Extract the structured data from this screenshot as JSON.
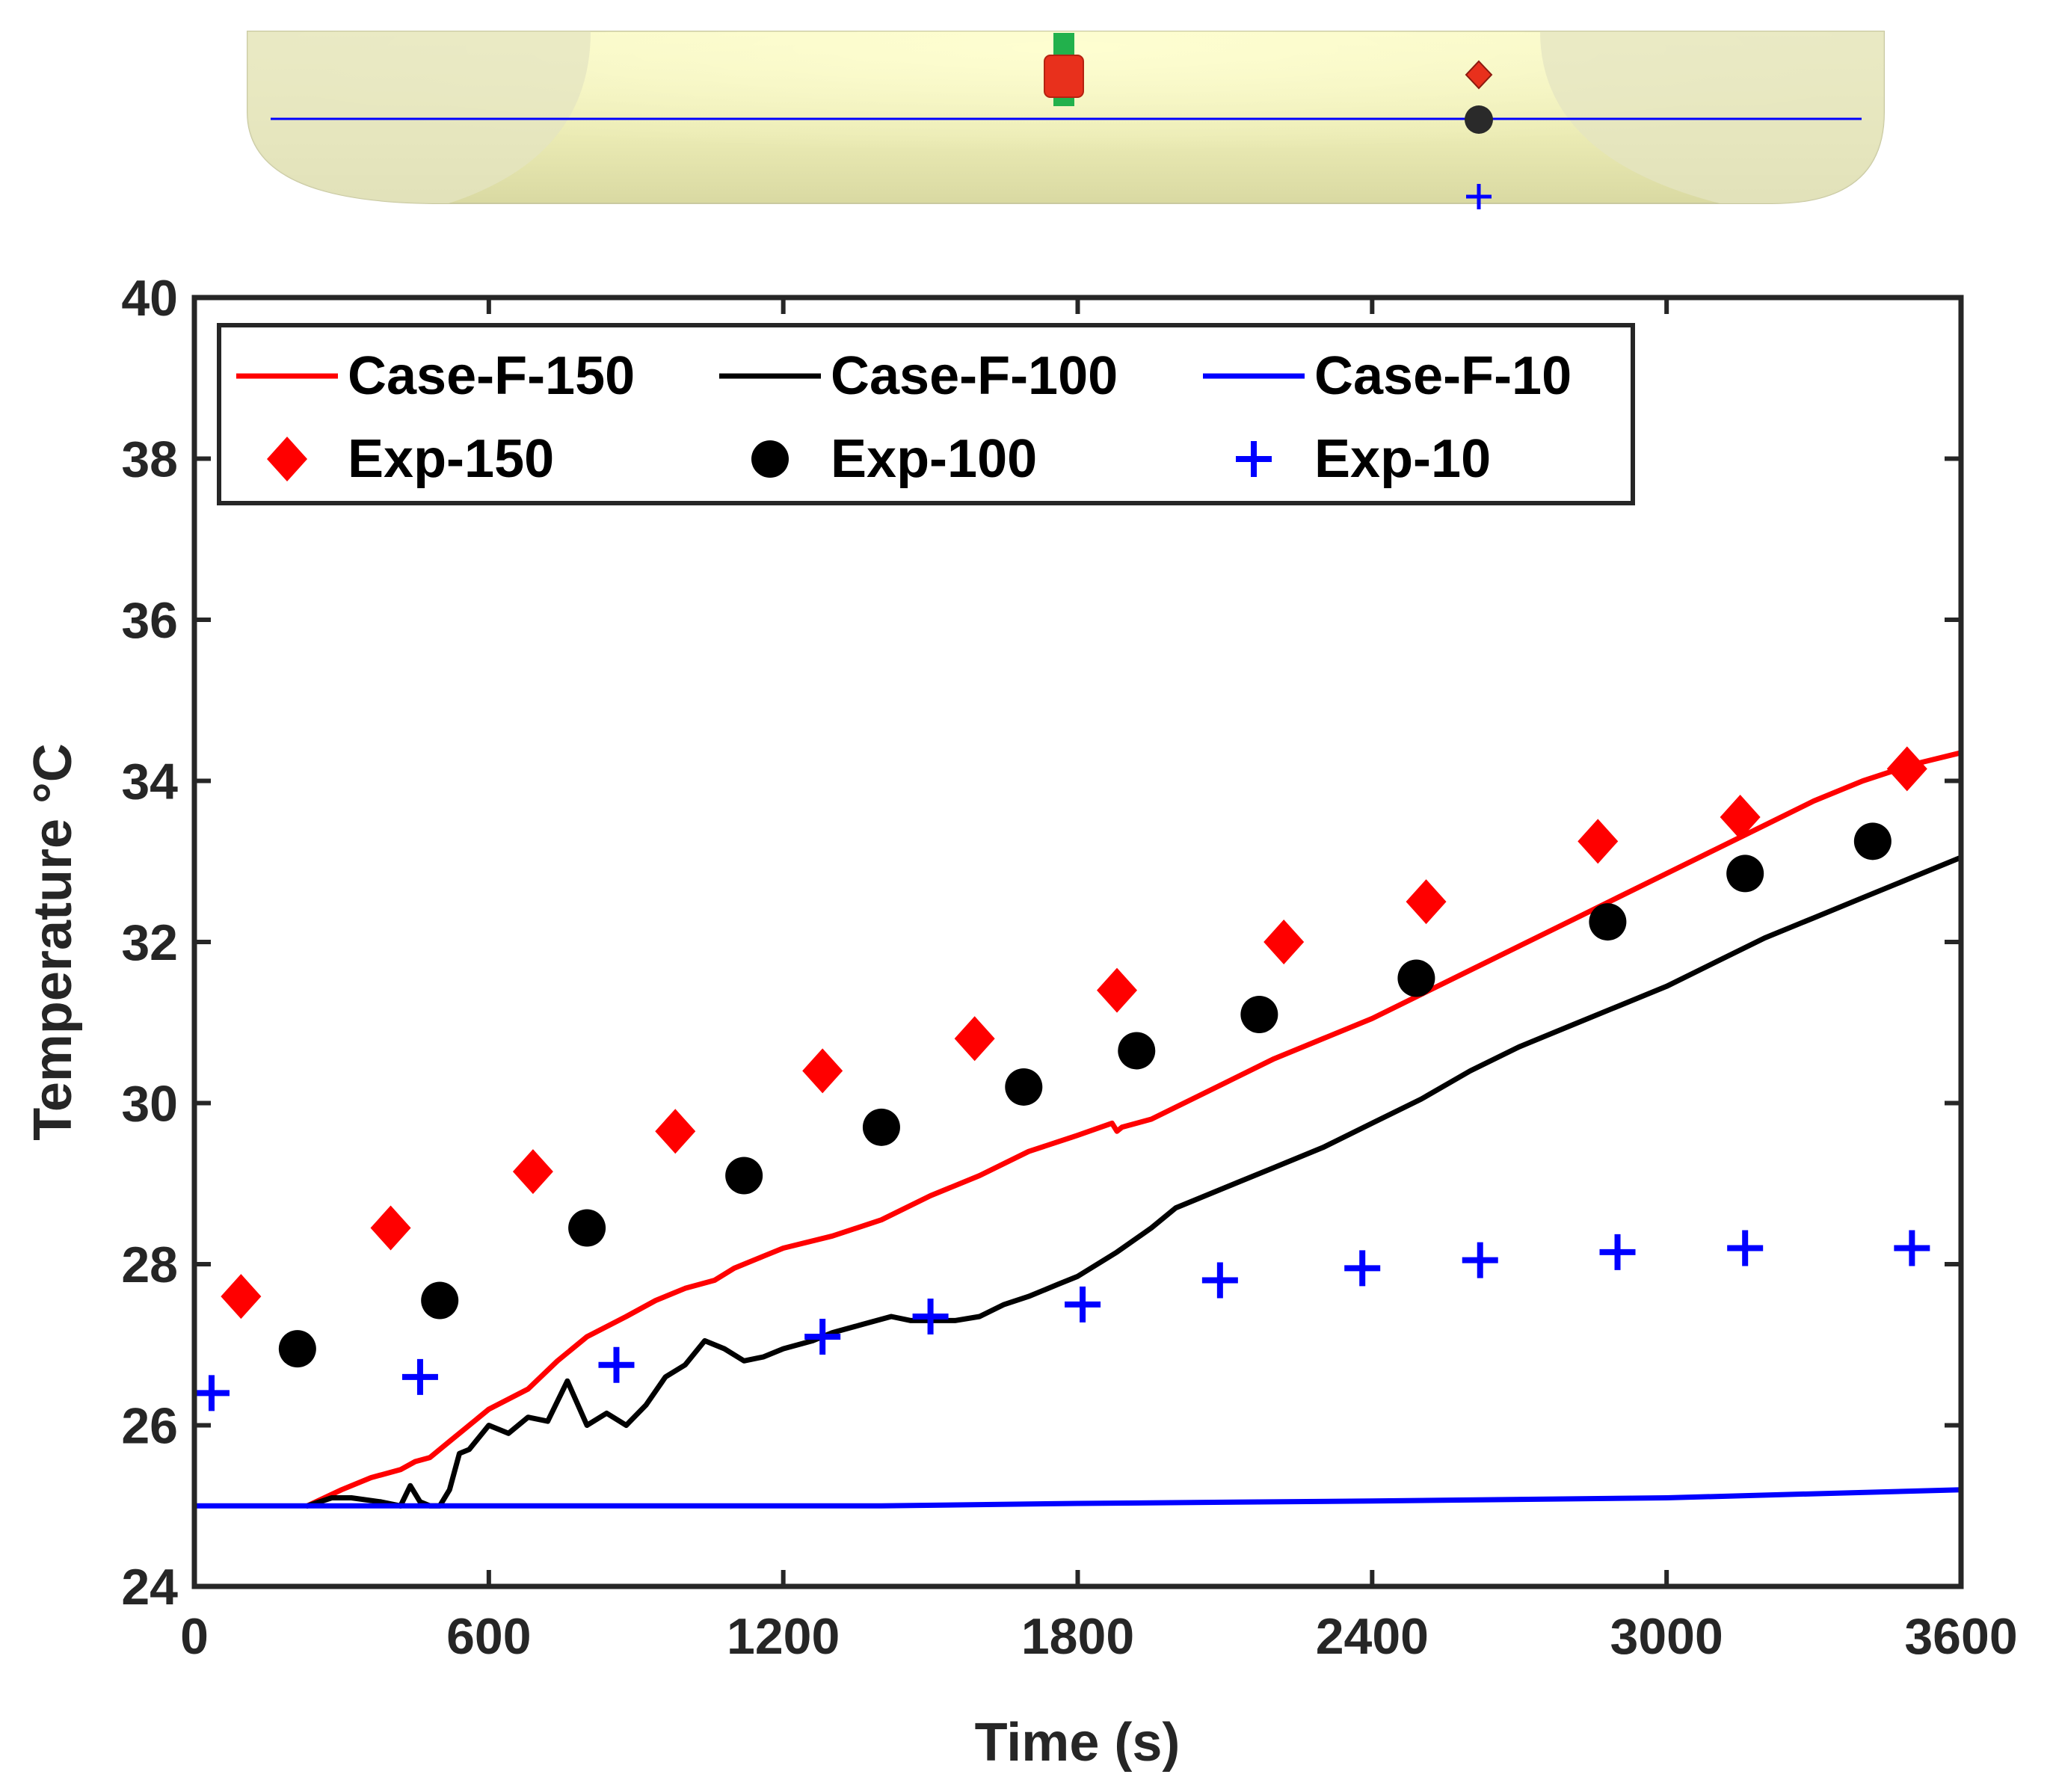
{
  "colors": {
    "case150": "#ff0000",
    "case100": "#000000",
    "case10": "#0000ff",
    "exp150": "#ff0000",
    "exp100": "#000000",
    "exp10": "#0000ff",
    "tank_fill": "#ebebb4",
    "axis": "#262626"
  },
  "chart_data": {
    "type": "line",
    "xlabel": "Time (s)",
    "ylabel": "Temperature °C",
    "xlim": [
      0,
      3600
    ],
    "ylim": [
      24,
      40
    ],
    "xticks": [
      0,
      600,
      1200,
      1800,
      2400,
      3000,
      3600
    ],
    "yticks": [
      24,
      26,
      28,
      30,
      32,
      34,
      36,
      38,
      40
    ],
    "x_tick_labels": [
      "0",
      "600",
      "1200",
      "1800",
      "2400",
      "3000",
      "3600"
    ],
    "y_tick_labels": [
      "24",
      "26",
      "28",
      "30",
      "32",
      "34",
      "36",
      "38",
      "40"
    ],
    "grid": false,
    "legend_position": "top-left",
    "series": [
      {
        "name": "Case-F-150",
        "kind": "line",
        "color": "#ff0000",
        "x": [
          230,
          300,
          360,
          420,
          450,
          480,
          520,
          560,
          600,
          680,
          740,
          800,
          880,
          940,
          1000,
          1060,
          1100,
          1160,
          1200,
          1300,
          1400,
          1500,
          1600,
          1700,
          1800,
          1870,
          1880,
          1890,
          1950,
          2000,
          2100,
          2200,
          2300,
          2400,
          2500,
          2600,
          2700,
          2800,
          2900,
          3000,
          3100,
          3200,
          3300,
          3400,
          3500,
          3600
        ],
        "y": [
          25.0,
          25.2,
          25.35,
          25.45,
          25.55,
          25.6,
          25.8,
          26.0,
          26.2,
          26.45,
          26.8,
          27.1,
          27.35,
          27.55,
          27.7,
          27.8,
          27.95,
          28.1,
          28.2,
          28.35,
          28.55,
          28.85,
          29.1,
          29.4,
          29.6,
          29.75,
          29.65,
          29.7,
          29.8,
          29.95,
          30.25,
          30.55,
          30.8,
          31.05,
          31.35,
          31.65,
          31.95,
          32.25,
          32.55,
          32.85,
          33.15,
          33.45,
          33.75,
          34.0,
          34.2,
          34.35
        ]
      },
      {
        "name": "Case-F-100",
        "kind": "line",
        "color": "#000000",
        "x": [
          230,
          280,
          320,
          380,
          420,
          440,
          460,
          480,
          500,
          520,
          540,
          560,
          600,
          640,
          680,
          720,
          760,
          800,
          840,
          880,
          920,
          960,
          1000,
          1040,
          1080,
          1120,
          1160,
          1200,
          1260,
          1300,
          1360,
          1420,
          1460,
          1500,
          1550,
          1600,
          1650,
          1700,
          1760,
          1800,
          1880,
          1950,
          2000,
          2100,
          2200,
          2300,
          2400,
          2500,
          2600,
          2700,
          2800,
          2900,
          3000,
          3100,
          3200,
          3300,
          3400,
          3500,
          3600
        ],
        "y": [
          25.0,
          25.1,
          25.1,
          25.05,
          25.0,
          25.25,
          25.05,
          25.0,
          25.0,
          25.2,
          25.65,
          25.7,
          26.0,
          25.9,
          26.1,
          26.05,
          26.55,
          26.0,
          26.15,
          26.0,
          26.25,
          26.6,
          26.75,
          27.05,
          26.95,
          26.8,
          26.85,
          26.95,
          27.05,
          27.15,
          27.25,
          27.35,
          27.3,
          27.3,
          27.3,
          27.35,
          27.5,
          27.6,
          27.75,
          27.85,
          28.15,
          28.45,
          28.7,
          28.95,
          29.2,
          29.45,
          29.75,
          30.05,
          30.4,
          30.7,
          30.95,
          31.2,
          31.45,
          31.75,
          32.05,
          32.3,
          32.55,
          32.8,
          33.05
        ]
      },
      {
        "name": "Case-F-10",
        "kind": "line",
        "color": "#0000ff",
        "x": [
          0,
          600,
          1200,
          1400,
          1800,
          2400,
          3000,
          3300,
          3600
        ],
        "y": [
          25.0,
          25.0,
          25.0,
          25.0,
          25.03,
          25.06,
          25.1,
          25.15,
          25.2
        ]
      },
      {
        "name": "Exp-150",
        "kind": "marker",
        "marker": "diamond",
        "color": "#ff0000",
        "x": [
          95,
          400,
          690,
          980,
          1280,
          1590,
          1880,
          2220,
          2510,
          2860,
          3150,
          3490
        ],
        "y": [
          27.6,
          28.45,
          29.15,
          29.65,
          30.4,
          30.8,
          31.4,
          32.0,
          32.5,
          33.25,
          33.55,
          34.15
        ]
      },
      {
        "name": "Exp-100",
        "kind": "marker",
        "marker": "circle",
        "color": "#000000",
        "x": [
          210,
          500,
          800,
          1120,
          1400,
          1690,
          1920,
          2170,
          2490,
          2880,
          3160,
          3420
        ],
        "y": [
          26.95,
          27.55,
          28.45,
          29.1,
          29.7,
          30.2,
          30.65,
          31.1,
          31.55,
          32.25,
          32.85,
          33.25
        ]
      },
      {
        "name": "Exp-10",
        "kind": "marker",
        "marker": "plus",
        "color": "#0000ff",
        "x": [
          35,
          460,
          860,
          1280,
          1500,
          1810,
          2090,
          2380,
          2620,
          2900,
          3160,
          3500
        ],
        "y": [
          26.4,
          26.6,
          26.75,
          27.1,
          27.35,
          27.5,
          27.8,
          27.95,
          28.05,
          28.15,
          28.2,
          28.2
        ]
      }
    ]
  }
}
